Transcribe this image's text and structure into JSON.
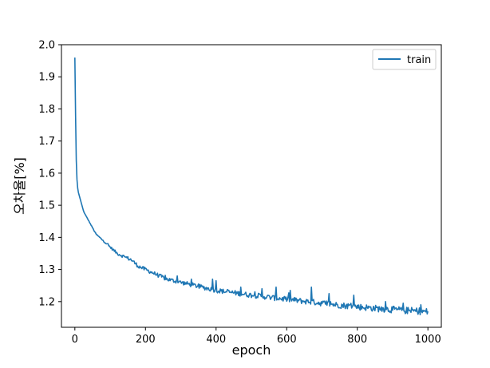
{
  "chart_data": {
    "type": "line",
    "title": "",
    "xlabel": "epoch",
    "ylabel": "오차율[%]",
    "xlim": [
      -38,
      1038
    ],
    "ylim": [
      1.12,
      2.0
    ],
    "xticks": [
      0,
      200,
      400,
      600,
      800,
      1000
    ],
    "yticks": [
      1.2,
      1.3,
      1.4,
      1.5,
      1.6,
      1.7,
      1.8,
      1.9,
      2.0
    ],
    "xtick_labels": [
      "0",
      "200",
      "400",
      "600",
      "800",
      "1000"
    ],
    "ytick_labels": [
      "1.2",
      "1.3",
      "1.4",
      "1.5",
      "1.6",
      "1.7",
      "1.8",
      "1.9",
      "2.0"
    ],
    "grid": false,
    "legend": {
      "placement": "top-right"
    },
    "series": [
      {
        "name": "train",
        "color": "#1f77b4",
        "points": [
          [
            0,
            1.96
          ],
          [
            1,
            1.86
          ],
          [
            2,
            1.78
          ],
          [
            3,
            1.7
          ],
          [
            4,
            1.64
          ],
          [
            5,
            1.6
          ],
          [
            7,
            1.56
          ],
          [
            10,
            1.54
          ],
          [
            15,
            1.52
          ],
          [
            20,
            1.5
          ],
          [
            25,
            1.48
          ],
          [
            30,
            1.47
          ],
          [
            40,
            1.45
          ],
          [
            50,
            1.43
          ],
          [
            60,
            1.41
          ],
          [
            70,
            1.4
          ],
          [
            80,
            1.39
          ],
          [
            90,
            1.38
          ],
          [
            100,
            1.37
          ],
          [
            120,
            1.35
          ],
          [
            140,
            1.34
          ],
          [
            160,
            1.33
          ],
          [
            180,
            1.31
          ],
          [
            200,
            1.3
          ],
          [
            220,
            1.29
          ],
          [
            240,
            1.28
          ],
          [
            260,
            1.27
          ],
          [
            280,
            1.265
          ],
          [
            300,
            1.26
          ],
          [
            320,
            1.255
          ],
          [
            340,
            1.25
          ],
          [
            360,
            1.245
          ],
          [
            380,
            1.24
          ],
          [
            400,
            1.235
          ],
          [
            420,
            1.232
          ],
          [
            440,
            1.229
          ],
          [
            460,
            1.226
          ],
          [
            480,
            1.223
          ],
          [
            500,
            1.22
          ],
          [
            520,
            1.218
          ],
          [
            540,
            1.215
          ],
          [
            560,
            1.212
          ],
          [
            580,
            1.21
          ],
          [
            600,
            1.207
          ],
          [
            620,
            1.205
          ],
          [
            640,
            1.202
          ],
          [
            660,
            1.2
          ],
          [
            680,
            1.198
          ],
          [
            700,
            1.195
          ],
          [
            720,
            1.193
          ],
          [
            740,
            1.19
          ],
          [
            760,
            1.188
          ],
          [
            780,
            1.186
          ],
          [
            800,
            1.184
          ],
          [
            820,
            1.182
          ],
          [
            840,
            1.18
          ],
          [
            860,
            1.178
          ],
          [
            880,
            1.177
          ],
          [
            900,
            1.175
          ],
          [
            920,
            1.174
          ],
          [
            940,
            1.172
          ],
          [
            960,
            1.171
          ],
          [
            980,
            1.17
          ],
          [
            1000,
            1.168
          ]
        ],
        "noise_amplitude": 0.008,
        "spikes": [
          [
            290,
            1.28
          ],
          [
            330,
            1.27
          ],
          [
            390,
            1.27
          ],
          [
            400,
            1.265
          ],
          [
            470,
            1.245
          ],
          [
            530,
            1.24
          ],
          [
            570,
            1.245
          ],
          [
            610,
            1.235
          ],
          [
            670,
            1.245
          ],
          [
            720,
            1.225
          ],
          [
            790,
            1.22
          ],
          [
            880,
            1.2
          ],
          [
            930,
            1.195
          ],
          [
            980,
            1.19
          ]
        ]
      }
    ]
  }
}
